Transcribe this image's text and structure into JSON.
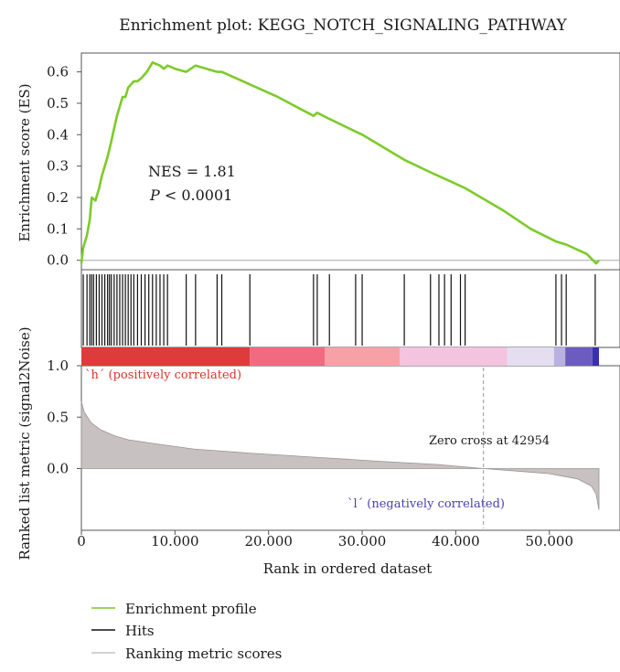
{
  "chart_data": {
    "type": "line",
    "title": "Enrichment plot: KEGG_NOTCH_SIGNALING_PATHWAY",
    "xlabel": "Rank in ordered dataset",
    "ylabel_top": "Enrichment score (ES)",
    "ylabel_bottom": "Ranked list metric (signal2Noise)",
    "x_range": [
      0,
      56000
    ],
    "x_ticks": [
      0,
      10000,
      20000,
      30000,
      40000,
      50000
    ],
    "x_tick_labels": [
      "0",
      "10.000",
      "20.000",
      "30.000",
      "40.000",
      "50.000"
    ],
    "es_ylim": [
      -0.03,
      0.66
    ],
    "es_ticks": [
      0.0,
      0.1,
      0.2,
      0.3,
      0.4,
      0.5,
      0.6
    ],
    "es_tick_labels": [
      "0.0",
      "0.1",
      "0.2",
      "0.3",
      "0.4",
      "0.5",
      "0.6"
    ],
    "metric_ylim": [
      -0.6,
      1.0
    ],
    "metric_ticks": [
      1.0,
      0.5,
      0.0
    ],
    "metric_tick_labels": [
      "1.0",
      "0.5",
      "0.0"
    ],
    "nes_label": "NES = 1.81",
    "p_label_symbol": "P",
    "p_label_value": " < 0.0001",
    "positive_label": "`h´ (positively correlated)",
    "negative_label": "`l´ (negatively correlated)",
    "zero_cross_label": "Zero cross at 42954",
    "zero_cross": 42954,
    "n_genes": 55300,
    "hits": [
      200,
      600,
      900,
      1100,
      1300,
      1600,
      1900,
      2200,
      2500,
      2800,
      3000,
      3200,
      3500,
      3800,
      4100,
      4400,
      4700,
      5000,
      5300,
      5600,
      6000,
      6400,
      6800,
      7200,
      7600,
      8000,
      8400,
      8800,
      9200,
      11200,
      12200,
      14500,
      15000,
      18000,
      24800,
      25200,
      26500,
      29300,
      30000,
      34500,
      37300,
      38200,
      38800,
      39500,
      40500,
      41000,
      50700,
      51300,
      51800,
      54900
    ],
    "es_curve": [
      [
        0,
        -0.01
      ],
      [
        200,
        0.04
      ],
      [
        600,
        0.08
      ],
      [
        900,
        0.13
      ],
      [
        1100,
        0.2
      ],
      [
        1500,
        0.19
      ],
      [
        1900,
        0.23
      ],
      [
        2200,
        0.27
      ],
      [
        2500,
        0.3
      ],
      [
        2800,
        0.33
      ],
      [
        3200,
        0.38
      ],
      [
        3500,
        0.42
      ],
      [
        3800,
        0.46
      ],
      [
        4100,
        0.49
      ],
      [
        4400,
        0.52
      ],
      [
        4700,
        0.52
      ],
      [
        5000,
        0.55
      ],
      [
        5600,
        0.57
      ],
      [
        6000,
        0.57
      ],
      [
        6400,
        0.58
      ],
      [
        7000,
        0.6
      ],
      [
        7600,
        0.63
      ],
      [
        8400,
        0.62
      ],
      [
        8800,
        0.61
      ],
      [
        9200,
        0.62
      ],
      [
        10000,
        0.61
      ],
      [
        11200,
        0.6
      ],
      [
        12200,
        0.62
      ],
      [
        14500,
        0.6
      ],
      [
        15000,
        0.6
      ],
      [
        18000,
        0.56
      ],
      [
        21000,
        0.52
      ],
      [
        24800,
        0.46
      ],
      [
        25200,
        0.47
      ],
      [
        26500,
        0.45
      ],
      [
        29300,
        0.41
      ],
      [
        30000,
        0.4
      ],
      [
        34500,
        0.32
      ],
      [
        37300,
        0.28
      ],
      [
        38800,
        0.26
      ],
      [
        41000,
        0.23
      ],
      [
        45000,
        0.16
      ],
      [
        48000,
        0.1
      ],
      [
        50700,
        0.06
      ],
      [
        51800,
        0.05
      ],
      [
        54000,
        0.02
      ],
      [
        55000,
        -0.01
      ],
      [
        55300,
        0.0
      ]
    ],
    "metric_curve": [
      [
        0,
        0.65
      ],
      [
        300,
        0.55
      ],
      [
        1000,
        0.45
      ],
      [
        2000,
        0.38
      ],
      [
        3500,
        0.32
      ],
      [
        5000,
        0.28
      ],
      [
        8000,
        0.24
      ],
      [
        12000,
        0.19
      ],
      [
        18000,
        0.15
      ],
      [
        25000,
        0.11
      ],
      [
        32000,
        0.07
      ],
      [
        38000,
        0.04
      ],
      [
        42954,
        0.0
      ],
      [
        46000,
        -0.02
      ],
      [
        50000,
        -0.05
      ],
      [
        53000,
        -0.1
      ],
      [
        54500,
        -0.17
      ],
      [
        55000,
        -0.25
      ],
      [
        55300,
        -0.4
      ]
    ],
    "rank_bar_segments": [
      {
        "start": 0,
        "end": 18000,
        "color": "#de3b3b"
      },
      {
        "start": 18000,
        "end": 26000,
        "color": "#f06a80"
      },
      {
        "start": 26000,
        "end": 34000,
        "color": "#f7a0a6"
      },
      {
        "start": 34000,
        "end": 45500,
        "color": "#f4c3df"
      },
      {
        "start": 45500,
        "end": 50500,
        "color": "#e4def0"
      },
      {
        "start": 50500,
        "end": 51700,
        "color": "#b9b2e0"
      },
      {
        "start": 51700,
        "end": 54600,
        "color": "#6c5cc0"
      },
      {
        "start": 54600,
        "end": 55300,
        "color": "#3a2fb0"
      }
    ],
    "colors": {
      "enrichment_line": "#7ccb2a",
      "hit_line": "#111111",
      "metric_fill": "#c8c1c1",
      "metric_line": "#9a9292",
      "positive_label": "#d9342b",
      "negative_label": "#4a3fb0",
      "zero_line": "#a8a8a8"
    },
    "legend": {
      "placement": "bottom-left",
      "entries": [
        {
          "label": "Enrichment profile",
          "color": "#7ccb2a"
        },
        {
          "label": "Hits",
          "color": "#111111"
        },
        {
          "label": "Ranking metric scores",
          "color": "#c8c1c1"
        }
      ]
    }
  }
}
